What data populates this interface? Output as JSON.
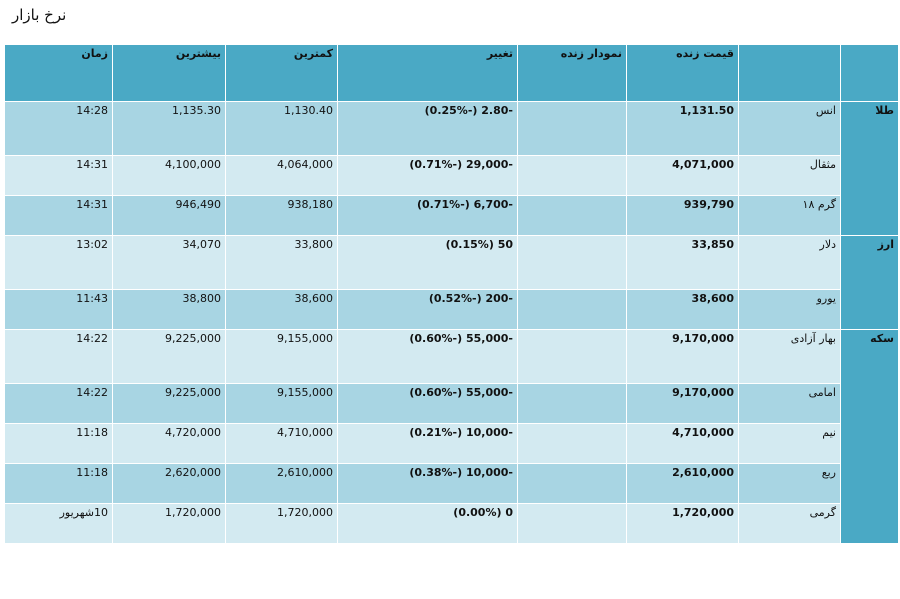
{
  "page": {
    "title": "نرخ بازار"
  },
  "headers": {
    "time": "زمان",
    "max": "بیشترین",
    "min": "کمترین",
    "change": "تغییر",
    "live_chart": "نمودار زنده",
    "live_price": "قیمت زنده",
    "name": "",
    "group": ""
  },
  "rows": [
    {
      "group": "طلا",
      "name": "انس",
      "price": "1,131.50",
      "chart": "",
      "change": "-2.80 (-0.25%)",
      "min": "1,130.40",
      "max": "1,135.30",
      "time": "14:28"
    },
    {
      "group": "",
      "name": "مثقال",
      "price": "4,071,000",
      "chart": "",
      "change": "-29,000 (-0.71%)",
      "min": "4,064,000",
      "max": "4,100,000",
      "time": "14:31"
    },
    {
      "group": "",
      "name": "گرم ۱۸",
      "price": "939,790",
      "chart": "",
      "change": "-6,700 (-0.71%)",
      "min": "938,180",
      "max": "946,490",
      "time": "14:31"
    },
    {
      "group": "ارز",
      "name": "دلار",
      "price": "33,850",
      "chart": "",
      "change": "50 (0.15%)",
      "min": "33,800",
      "max": "34,070",
      "time": "13:02"
    },
    {
      "group": "",
      "name": "یورو",
      "price": "38,600",
      "chart": "",
      "change": "-200 (-0.52%)",
      "min": "38,600",
      "max": "38,800",
      "time": "11:43"
    },
    {
      "group": "سکه",
      "name": "بهار آزادی",
      "price": "9,170,000",
      "chart": "",
      "change": "-55,000 (-0.60%)",
      "min": "9,155,000",
      "max": "9,225,000",
      "time": "14:22"
    },
    {
      "group": "",
      "name": "امامی",
      "price": "9,170,000",
      "chart": "",
      "change": "-55,000 (-0.60%)",
      "min": "9,155,000",
      "max": "9,225,000",
      "time": "14:22"
    },
    {
      "group": "",
      "name": "نیم",
      "price": "4,710,000",
      "chart": "",
      "change": "-10,000 (-0.21%)",
      "min": "4,710,000",
      "max": "4,720,000",
      "time": "11:18"
    },
    {
      "group": "",
      "name": "ربع",
      "price": "2,610,000",
      "chart": "",
      "change": "-10,000 (-0.38%)",
      "min": "2,610,000",
      "max": "2,620,000",
      "time": "11:18"
    },
    {
      "group": "",
      "name": "گرمی",
      "price": "1,720,000",
      "chart": "",
      "change": "0 (0.00%)",
      "min": "1,720,000",
      "max": "1,720,000",
      "time": "10شهریور"
    }
  ]
}
